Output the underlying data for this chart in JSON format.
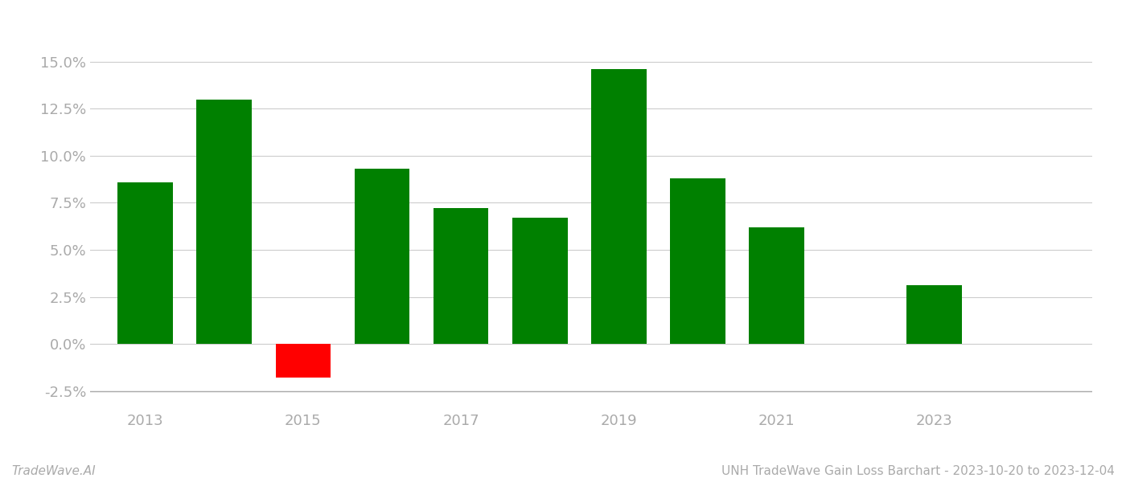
{
  "years": [
    2013,
    2014,
    2015,
    2016,
    2017,
    2018,
    2019,
    2020,
    2021,
    2023
  ],
  "values": [
    8.6,
    13.0,
    -1.8,
    9.3,
    7.2,
    6.7,
    14.6,
    8.8,
    6.2,
    3.1
  ],
  "bar_colors": [
    "#008000",
    "#008000",
    "#ff0000",
    "#008000",
    "#008000",
    "#008000",
    "#008000",
    "#008000",
    "#008000",
    "#008000"
  ],
  "ylim": [
    -3.5,
    17.0
  ],
  "yticks": [
    -2.5,
    0.0,
    2.5,
    5.0,
    7.5,
    10.0,
    12.5,
    15.0
  ],
  "xtick_positions": [
    2013,
    2015,
    2017,
    2019,
    2021,
    2023
  ],
  "xtick_labels": [
    "2013",
    "2015",
    "2017",
    "2019",
    "2021",
    "2023"
  ],
  "title": "UNH TradeWave Gain Loss Barchart - 2023-10-20 to 2023-12-04",
  "watermark": "TradeWave.AI",
  "background_color": "#ffffff",
  "bar_width": 0.7,
  "grid_color": "#cccccc",
  "axis_color": "#aaaaaa",
  "tick_color": "#aaaaaa",
  "title_fontsize": 11,
  "watermark_fontsize": 11,
  "tick_labelsize": 13,
  "xlim_left": 2011.8,
  "xlim_right": 2024.5
}
